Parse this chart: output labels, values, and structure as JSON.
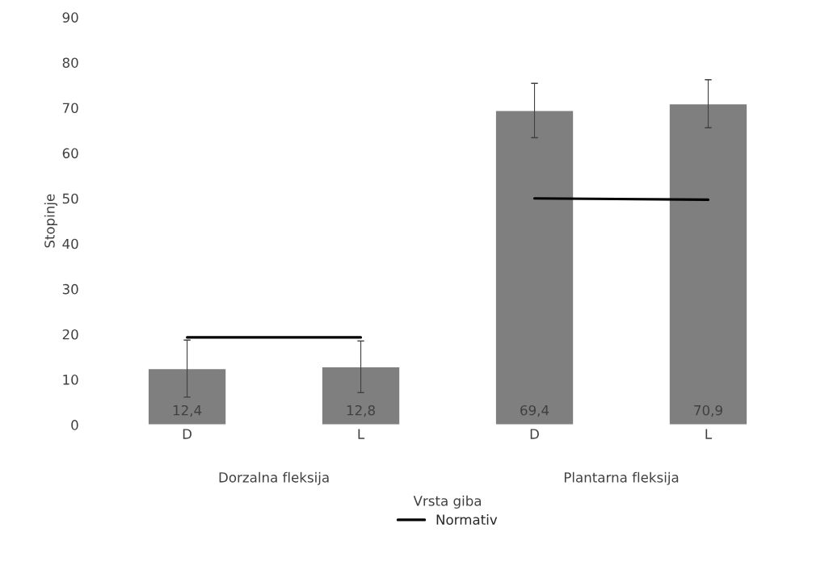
{
  "chart_data": {
    "type": "bar",
    "xlabel": "Vrsta giba",
    "ylabel": "Stopinje",
    "categories": [
      "D",
      "L",
      "D",
      "L"
    ],
    "series": [
      {
        "color": "#7f7f7f",
        "values": [
          12.4,
          12.8,
          69.4,
          70.9
        ],
        "value_labels": [
          "12,4",
          "12,8",
          "69,4",
          "70,9"
        ],
        "errors": [
          6.3,
          5.7,
          6.0,
          5.3
        ]
      },
      {
        "type": "line",
        "name": "Normativ",
        "color": "#000000",
        "values": [
          19.3,
          19.3,
          null,
          null
        ]
      },
      {
        "type": "line",
        "color": "#000000",
        "values": [
          null,
          null,
          50,
          49.7
        ]
      }
    ],
    "annotations": [
      "Dorzalna fleksija",
      "Plantarna fleksija"
    ],
    "ylim": [
      0,
      90
    ],
    "yticks": [
      0,
      10,
      20,
      30,
      40,
      50,
      60,
      70,
      80,
      90
    ],
    "grid": false,
    "legend": "bottom"
  }
}
